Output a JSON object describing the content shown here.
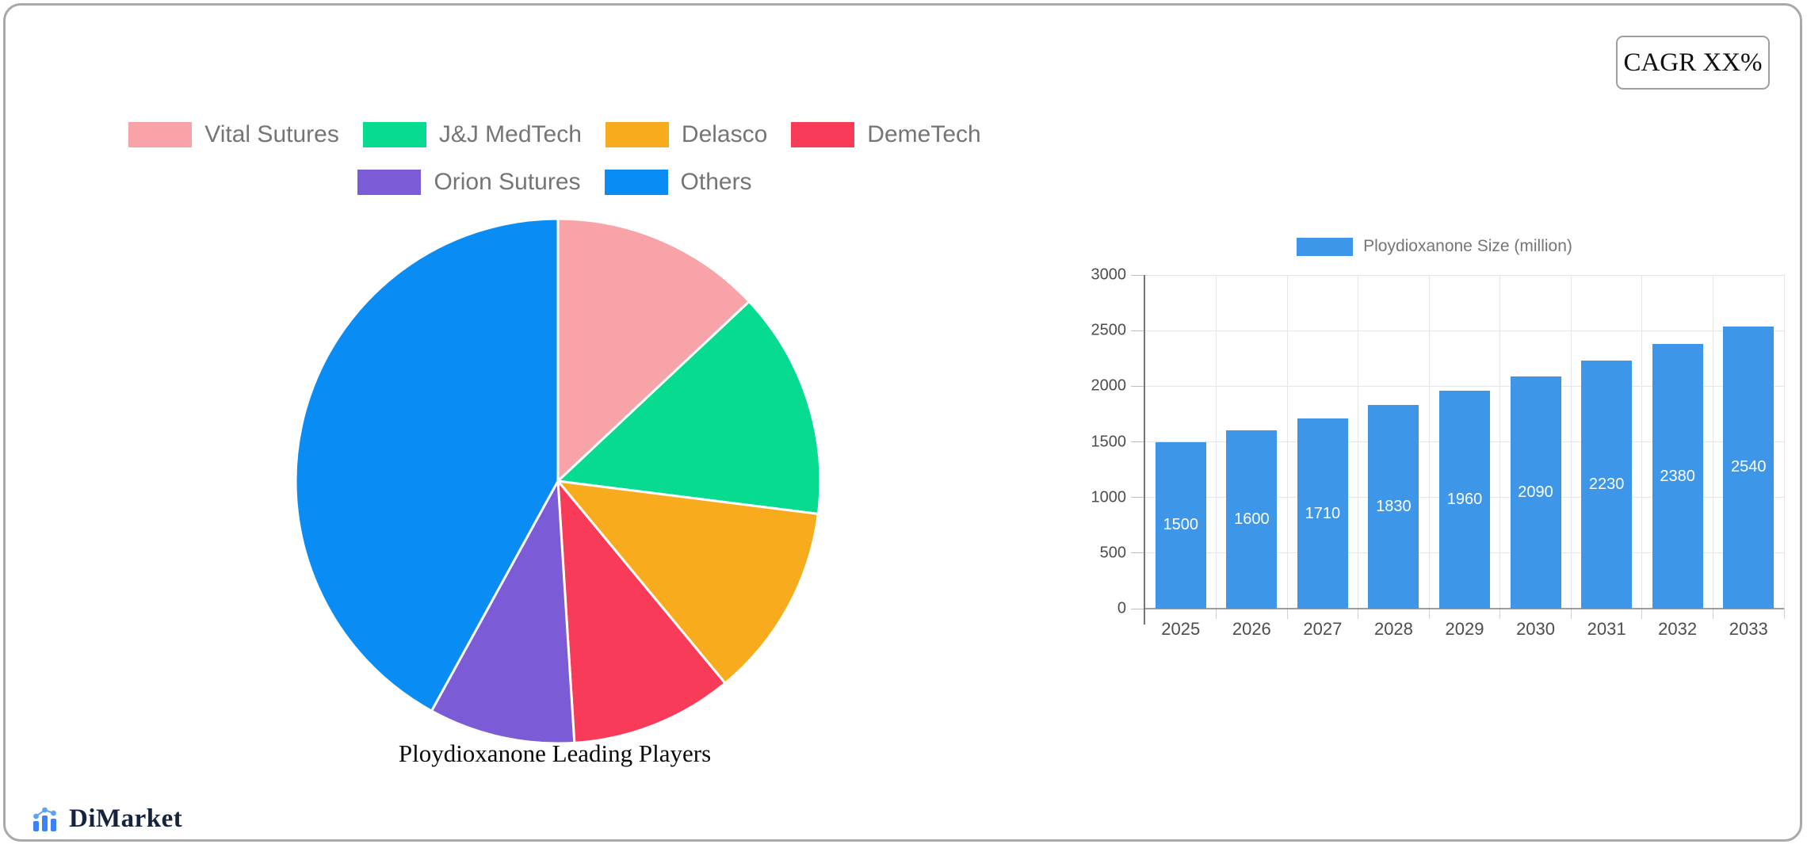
{
  "header": {
    "cagr_label": "CAGR XX%"
  },
  "footer": {
    "brand": "DiMarket"
  },
  "chart_data": [
    {
      "type": "pie",
      "title": "Ploydioxanone Leading Players",
      "legend_position": "top",
      "labels": [
        "Vital Sutures",
        "J&J MedTech",
        "Delasco",
        "DemeTech",
        "Orion Sutures",
        "Others"
      ],
      "values": [
        13,
        14,
        12,
        10,
        9,
        42
      ],
      "colors": [
        "#F8A3A7",
        "#07DB90",
        "#F9AB1E",
        "#F73B58",
        "#7B5BD6",
        "#0A8CF5"
      ],
      "start_angle_deg": 0,
      "direction": "clockwise",
      "slice_border_color": "#FFFFFF"
    },
    {
      "type": "bar",
      "legend": "Ploydioxanone Size (million)",
      "legend_position": "top",
      "categories": [
        "2025",
        "2026",
        "2027",
        "2028",
        "2029",
        "2030",
        "2031",
        "2032",
        "2033"
      ],
      "values": [
        1500,
        1600,
        1710,
        1830,
        1960,
        2090,
        2230,
        2380,
        2540
      ],
      "bar_color": "#3D96E8",
      "value_label_color": "#FFFFFF",
      "ylim": [
        0,
        3000
      ],
      "yticks": [
        0,
        500,
        1000,
        1500,
        2000,
        2500,
        3000
      ],
      "grid": true
    }
  ]
}
